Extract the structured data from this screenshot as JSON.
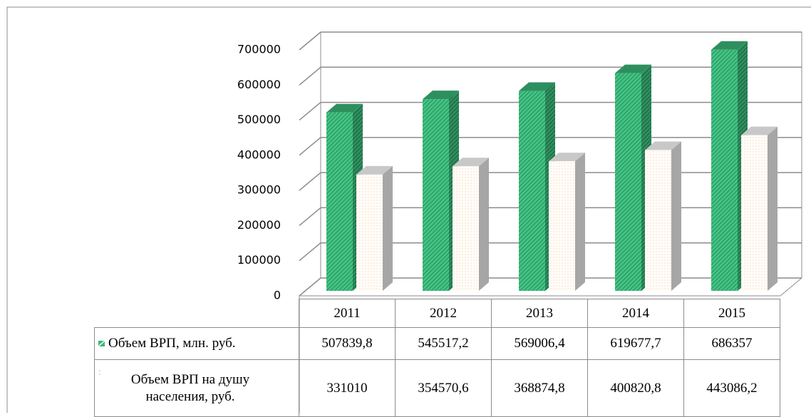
{
  "chart_data": {
    "type": "bar3d",
    "categories": [
      "2011",
      "2012",
      "2013",
      "2014",
      "2015"
    ],
    "series": [
      {
        "name": "Объем ВРП, млн. руб.",
        "color": "#3cb878",
        "values": [
          507839.8,
          545517.2,
          569006.4,
          619677.7,
          686357
        ],
        "value_labels": [
          "507839,8",
          "545517,2",
          "569006,4",
          "619677,7",
          "686357"
        ]
      },
      {
        "name": "Объем ВРП на душу населения, руб.",
        "color": "#fff8f0",
        "values": [
          331010,
          354570.6,
          368874.8,
          400820.8,
          443086.2
        ],
        "value_labels": [
          "331010",
          "354570,6",
          "368874,8",
          "400820,8",
          "443086,2"
        ]
      }
    ],
    "ylim": [
      0,
      700000
    ],
    "yticks": [
      0,
      100000,
      200000,
      300000,
      400000,
      500000,
      600000,
      700000
    ],
    "grid": true,
    "data_table": true
  }
}
